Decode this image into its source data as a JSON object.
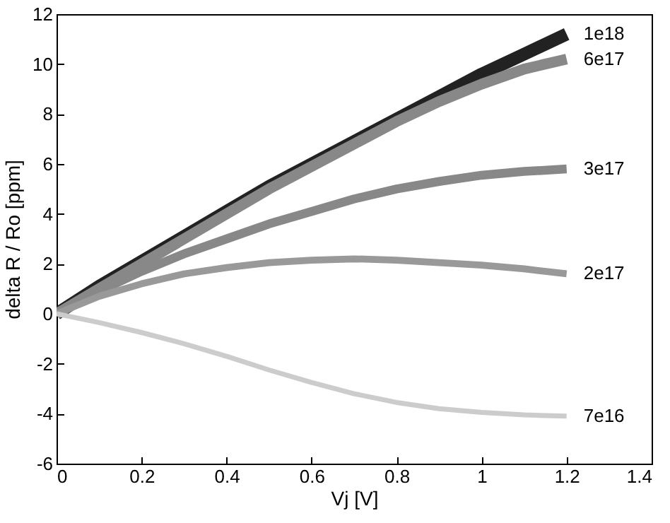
{
  "chart_data": {
    "type": "line",
    "xlabel": "Vj [V]",
    "ylabel": "delta R / Ro [ppm]",
    "x": [
      0,
      0.1,
      0.2,
      0.3,
      0.4,
      0.5,
      0.6,
      0.7,
      0.8,
      0.9,
      1.0,
      1.1,
      1.2
    ],
    "series": [
      {
        "name": "1e18",
        "color": "#222222",
        "values": [
          0,
          1.1,
          2.1,
          3.1,
          4.1,
          5.1,
          6.0,
          6.9,
          7.8,
          8.7,
          9.6,
          10.4,
          11.2
        ]
      },
      {
        "name": "6e17",
        "color": "#888888",
        "values": [
          0,
          1.0,
          2.0,
          3.0,
          4.0,
          5.0,
          5.9,
          6.8,
          7.7,
          8.5,
          9.2,
          9.8,
          10.2
        ]
      },
      {
        "name": "3e17",
        "color": "#888888",
        "values": [
          0,
          0.9,
          1.7,
          2.4,
          3.0,
          3.6,
          4.1,
          4.6,
          5.0,
          5.3,
          5.55,
          5.7,
          5.8
        ]
      },
      {
        "name": "2e17",
        "color": "#999999",
        "values": [
          0,
          0.7,
          1.2,
          1.6,
          1.85,
          2.05,
          2.15,
          2.2,
          2.15,
          2.05,
          1.95,
          1.8,
          1.6
        ]
      },
      {
        "name": "7e16",
        "color": "#cccccc",
        "values": [
          0,
          -0.35,
          -0.75,
          -1.2,
          -1.7,
          -2.25,
          -2.75,
          -3.2,
          -3.55,
          -3.8,
          -3.95,
          -4.05,
          -4.1
        ]
      }
    ],
    "xlim": [
      0,
      1.4
    ],
    "xticks": [
      0,
      0.2,
      0.4,
      0.6,
      0.8,
      1,
      1.2,
      1.4
    ],
    "ylim": [
      -6,
      12
    ],
    "yticks": [
      -6,
      -4,
      -2,
      0,
      2,
      4,
      6,
      8,
      10,
      12
    ],
    "grid": false,
    "legend": false,
    "marker": "none",
    "line_style": "solid"
  }
}
